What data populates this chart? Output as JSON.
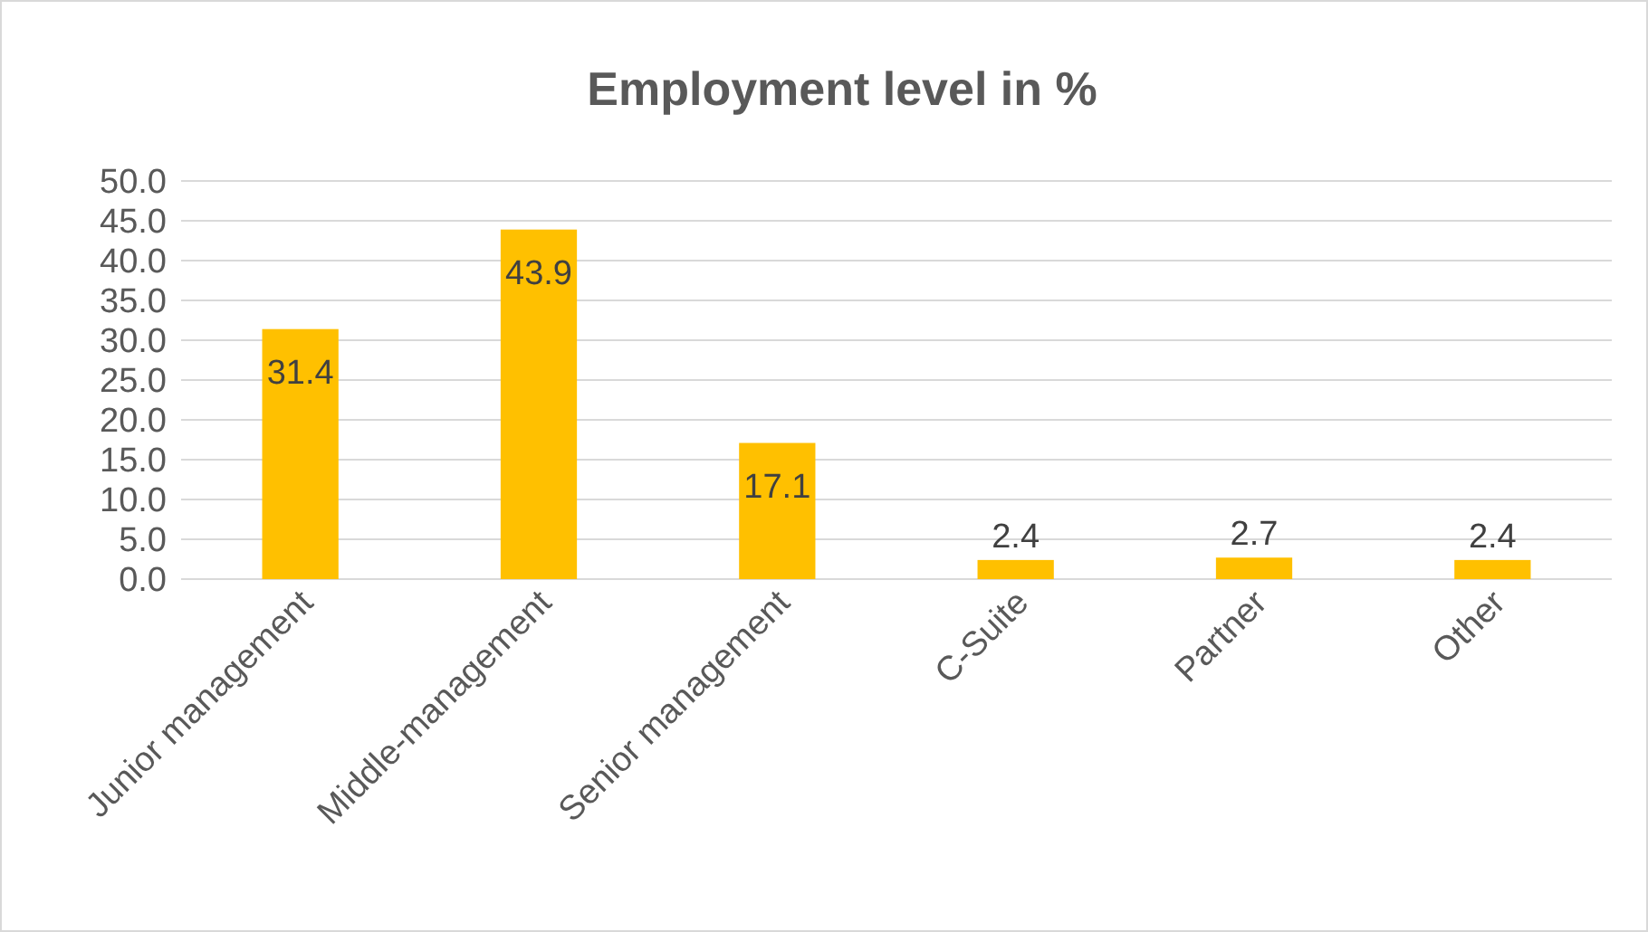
{
  "chart_data": {
    "type": "bar",
    "title": "Employment level in %",
    "categories": [
      "Junior management",
      "Middle-management",
      "Senior management",
      "C-Suite",
      "Partner",
      "Other"
    ],
    "values": [
      31.4,
      43.9,
      17.1,
      2.4,
      2.7,
      2.4
    ],
    "color": "#ffc000",
    "ylim": [
      0,
      50
    ],
    "yticks": [
      {
        "value": 0,
        "label": "0.0"
      },
      {
        "value": 5,
        "label": "5.0"
      },
      {
        "value": 10,
        "label": "10.0"
      },
      {
        "value": 15,
        "label": "15.0"
      },
      {
        "value": 20,
        "label": "20.0"
      },
      {
        "value": 25,
        "label": "25.0"
      },
      {
        "value": 30,
        "label": "30.0"
      },
      {
        "value": 35,
        "label": "35.0"
      },
      {
        "value": 40,
        "label": "40.0"
      },
      {
        "value": 45,
        "label": "45.0"
      },
      {
        "value": 50,
        "label": "50.0"
      }
    ],
    "grid": true,
    "data_labels": true
  }
}
